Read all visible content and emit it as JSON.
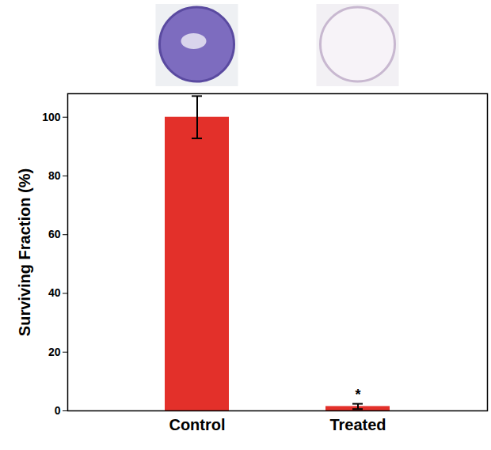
{
  "chart_data": {
    "type": "bar",
    "y_label": "Surviving Fraction (%)",
    "categories": [
      "Control",
      "Treated"
    ],
    "values": [
      100,
      1.5
    ],
    "errors": [
      7.2,
      0.9
    ],
    "color": "#e3302a",
    "ylim": [
      0,
      108
    ],
    "yticks": [
      0,
      20,
      40,
      60,
      80,
      100
    ],
    "annotations": [
      {
        "category": "Treated",
        "text": "*"
      }
    ],
    "grid": false
  }
}
